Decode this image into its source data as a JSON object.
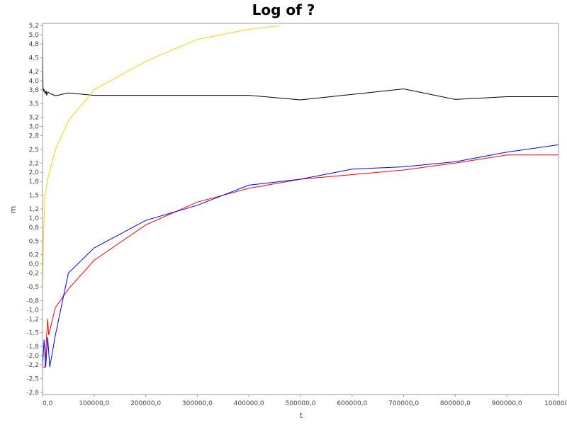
{
  "chart_data": {
    "type": "line",
    "title": "Log of ?",
    "xlabel": "t",
    "ylabel": "m",
    "xlim": [
      0,
      1000000
    ],
    "ylim": [
      -2.85,
      5.25
    ],
    "x_ticks": [
      0,
      100000,
      200000,
      300000,
      400000,
      500000,
      600000,
      700000,
      800000,
      900000,
      1000000
    ],
    "x_tick_labels": [
      "0,0",
      "100000,0",
      "200000,0",
      "300000,0",
      "400000,0",
      "500000,0",
      "600000,0",
      "700000,0",
      "800000,0",
      "900000,0",
      "1000000"
    ],
    "y_ticks": [
      5.2,
      5.0,
      4.8,
      4.5,
      4.2,
      4.0,
      3.8,
      3.5,
      3.2,
      3.0,
      2.8,
      2.5,
      2.2,
      2.0,
      1.8,
      1.5,
      1.2,
      1.0,
      0.8,
      0.5,
      0.2,
      0.0,
      -0.2,
      -0.5,
      -0.8,
      -1.0,
      -1.2,
      -1.5,
      -1.8,
      -2.0,
      -2.2,
      -2.5,
      -2.8
    ],
    "y_tick_labels": [
      "5,2",
      "5,0",
      "4,8",
      "4,5",
      "4,2",
      "4,0",
      "3,8",
      "3,5",
      "3,2",
      "3,0",
      "2,8",
      "2,5",
      "2,2",
      "2,0",
      "1,8",
      "1,5",
      "1,2",
      "1,0",
      "0,8",
      "0,5",
      "0,2",
      "0,0",
      "-0,2",
      "-0,5",
      "-0,8",
      "-1,0",
      "-1,2",
      "-1,5",
      "-1,8",
      "-2,0",
      "-2,2",
      "-2,5",
      "-2,8"
    ],
    "grid": false,
    "legend": "none",
    "series": [
      {
        "color": "#000000",
        "x": [
          0,
          1000,
          2000,
          3000,
          5000,
          7000,
          8000,
          9000,
          10000,
          15000,
          25000,
          50000,
          100000,
          200000,
          300000,
          400000,
          500000,
          600000,
          700000,
          800000,
          900000,
          1000000
        ],
        "values": [
          5.05,
          3.85,
          3.78,
          3.8,
          3.72,
          3.78,
          3.68,
          3.72,
          3.75,
          3.72,
          3.67,
          3.73,
          3.68,
          3.68,
          3.68,
          3.68,
          3.58,
          3.7,
          3.82,
          3.59,
          3.65,
          3.65
        ]
      },
      {
        "color": "#ffcc00",
        "x": [
          0,
          2000,
          5000,
          10000,
          25000,
          50000,
          100000,
          200000,
          300000,
          400000,
          460000
        ],
        "values": [
          -0.6,
          0.7,
          1.5,
          1.85,
          2.5,
          3.12,
          3.8,
          4.42,
          4.9,
          5.12,
          5.2
        ]
      },
      {
        "color": "#ff0000",
        "x": [
          0,
          5000,
          8000,
          10000,
          12000,
          25000,
          50000,
          100000,
          200000,
          300000,
          400000,
          500000,
          600000,
          700000,
          800000,
          900000,
          1000000
        ],
        "values": [
          -2.25,
          -2.25,
          -1.55,
          -1.2,
          -1.55,
          -0.95,
          -0.55,
          0.08,
          0.85,
          1.35,
          1.65,
          1.85,
          1.95,
          2.05,
          2.2,
          2.38,
          2.38
        ]
      },
      {
        "color": "#0000ff",
        "x": [
          0,
          3000,
          6000,
          10000,
          14000,
          25000,
          50000,
          100000,
          200000,
          300000,
          400000,
          500000,
          600000,
          700000,
          800000,
          900000,
          1000000
        ],
        "values": [
          -2.25,
          -1.65,
          -2.25,
          -1.6,
          -2.25,
          -1.55,
          -0.2,
          0.35,
          0.95,
          1.28,
          1.72,
          1.85,
          2.07,
          2.12,
          2.23,
          2.44,
          2.6
        ]
      }
    ]
  }
}
